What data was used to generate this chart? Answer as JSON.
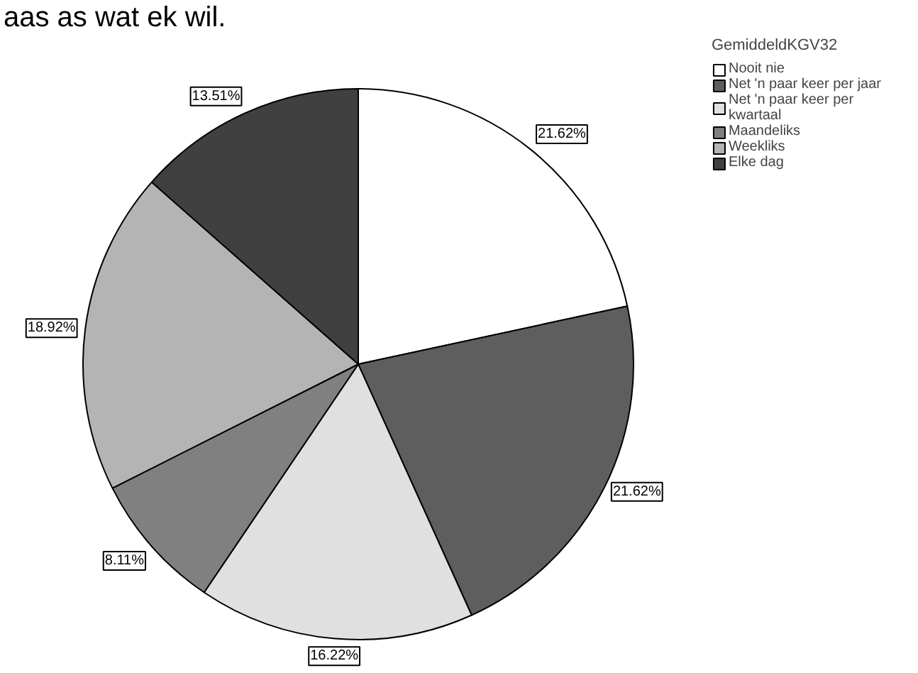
{
  "chart_data": {
    "type": "pie",
    "title": "aas as wat ek wil.",
    "legend_title": "GemiddeldKGV32",
    "categories": [
      "Nooit nie",
      "Net 'n paar keer per jaar",
      "Net 'n paar keer per kwartaal",
      "Maandeliks",
      "Weekliks",
      "Elke dag"
    ],
    "values": [
      21.62,
      21.62,
      16.22,
      8.11,
      18.92,
      13.51
    ],
    "colors": [
      "#ffffff",
      "#5e5e5e",
      "#e0e0e0",
      "#808080",
      "#b4b4b4",
      "#404040"
    ],
    "value_labels": [
      "21.62%",
      "21.62%",
      "16.22%",
      "8.11%",
      "18.92%",
      "13.51%"
    ],
    "legend": "top right"
  }
}
